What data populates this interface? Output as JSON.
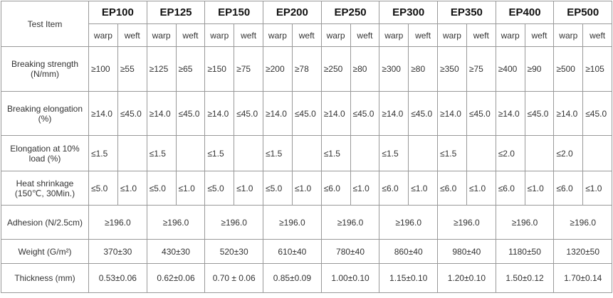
{
  "table": {
    "corner": "Test Item",
    "models": [
      "EP100",
      "EP125",
      "EP150",
      "EP200",
      "EP250",
      "EP300",
      "EP350",
      "EP400",
      "EP500"
    ],
    "subheaders": [
      "warp",
      "weft"
    ],
    "rows": [
      {
        "label": "Breaking strength (N/mm)",
        "cells": [
          "≥100",
          "≥55",
          "≥125",
          "≥65",
          "≥150",
          "≥75",
          "≥200",
          "≥78",
          "≥250",
          "≥80",
          "≥300",
          "≥80",
          "≥350",
          "≥75",
          "≥400",
          "≥90",
          "≥500",
          "≥105"
        ]
      },
      {
        "label": "Breaking elongation (%)",
        "cells": [
          "≥14.0",
          "≤45.0",
          "≥14.0",
          "≤45.0",
          "≥14.0",
          "≤45.0",
          "≥14.0",
          "≤45.0",
          "≥14.0",
          "≤45.0",
          "≥14.0",
          "≤45.0",
          "≥14.0",
          "≤45.0",
          "≥14.0",
          "≤45.0",
          "≥14.0",
          "≤45.0"
        ]
      },
      {
        "label": "Elongation at 10% load (%)",
        "cells": [
          "≤1.5",
          null,
          "≤1.5",
          null,
          "≤1.5",
          null,
          "≤1.5",
          null,
          "≤1.5",
          null,
          "≤1.5",
          null,
          "≤1.5",
          null,
          "≤2.0",
          null,
          "≤2.0",
          null
        ]
      },
      {
        "label": "Heat shrinkage (150℃, 30Min.)",
        "cells": [
          "≤5.0",
          "≤1.0",
          "≤5.0",
          "≤1.0",
          "≤5.0",
          "≤1.0",
          "≤5.0",
          "≤1.0",
          "≤6.0",
          "≤1.0",
          "≤6.0",
          "≤1.0",
          "≤6.0",
          "≤1.0",
          "≤6.0",
          "≤1.0",
          "≤6.0",
          "≤1.0"
        ]
      },
      {
        "label": "Adhesion (N/2.5cm)",
        "cells": [
          "≥196.0",
          "≥196.0",
          "≥196.0",
          "≥196.0",
          "≥196.0",
          "≥196.0",
          "≥196.0",
          "≥196.0",
          "≥196.0"
        ]
      },
      {
        "label": "Weight (G/m²)",
        "cells": [
          "370±30",
          "430±30",
          "520±30",
          "610±40",
          "780±40",
          "860±40",
          "980±40",
          "1180±50",
          "1320±50"
        ]
      },
      {
        "label": "Thickness (mm)",
        "cells": [
          "0.53±0.06",
          "0.62±0.06",
          "0.70 ± 0.06",
          "0.85±0.09",
          "1.00±0.10",
          "1.15±0.10",
          "1.20±0.10",
          "1.50±0.12",
          "1.70±0.14"
        ]
      }
    ]
  }
}
